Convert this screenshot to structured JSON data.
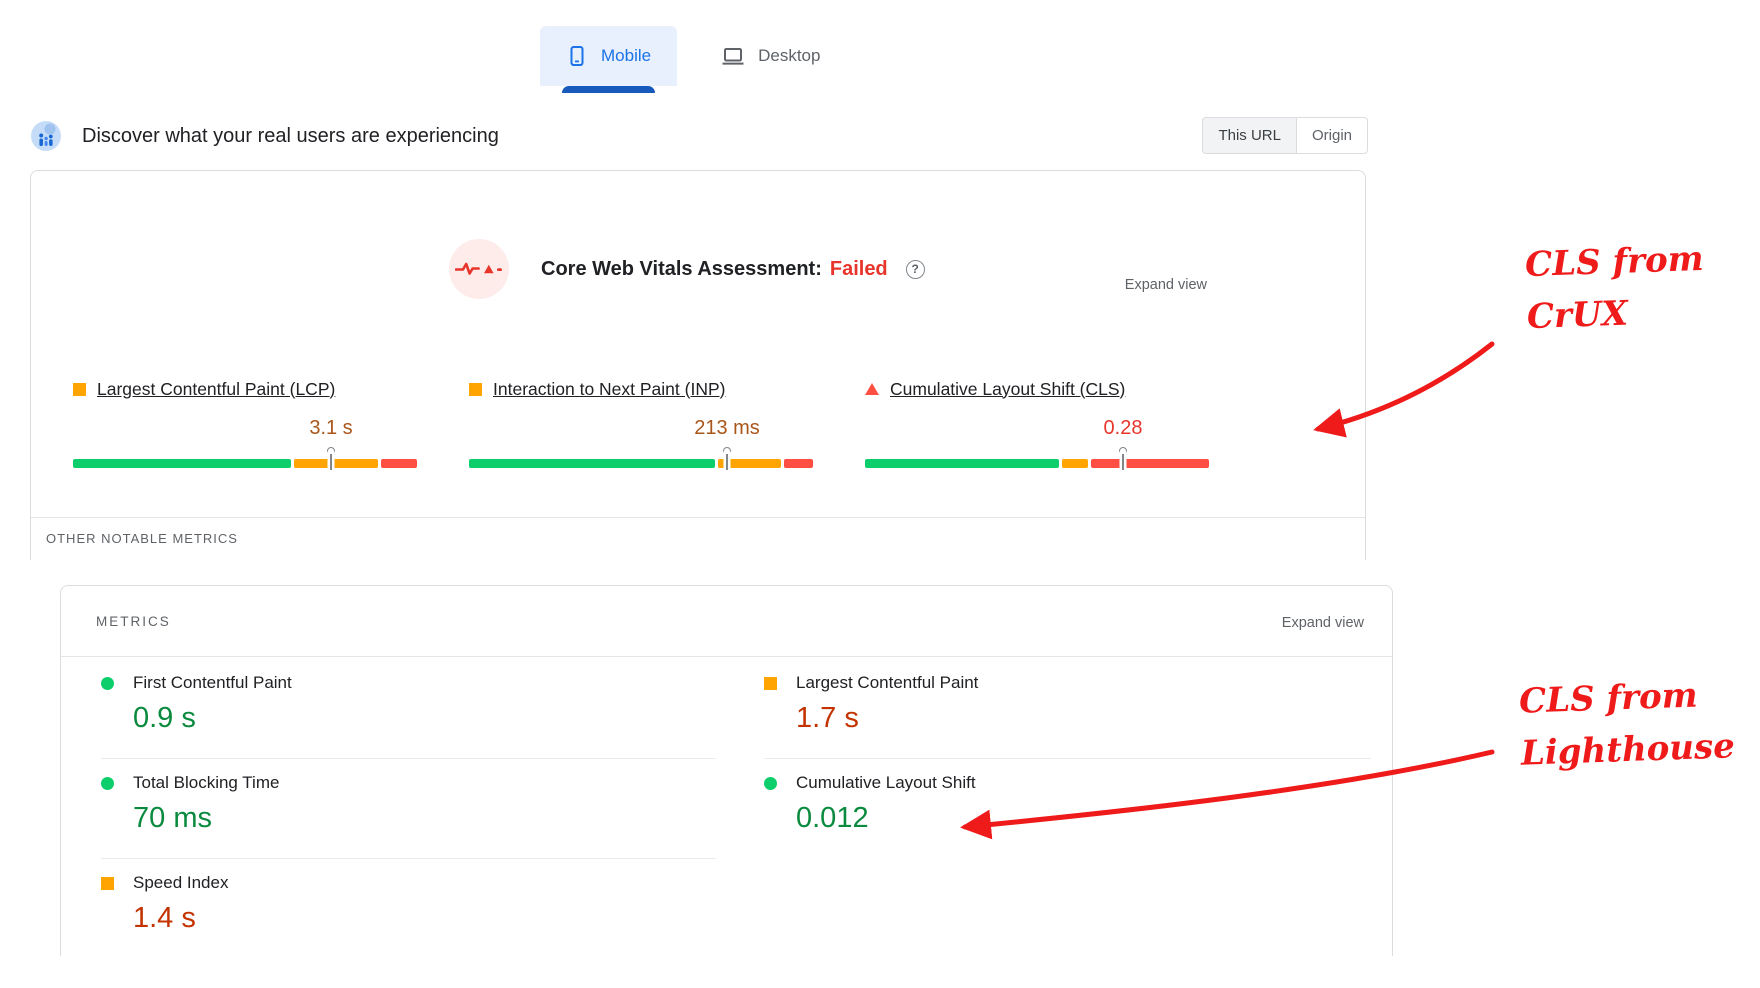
{
  "device_tabs": {
    "mobile": {
      "label": "Mobile",
      "selected": true
    },
    "desktop": {
      "label": "Desktop",
      "selected": false
    }
  },
  "field_section": {
    "title": "Discover what your real users are experiencing",
    "scope_toggle": {
      "this_url": "This URL",
      "origin": "Origin",
      "selected": "This URL"
    },
    "assessment_label": "Core Web Vitals Assessment:",
    "assessment_result": "Failed",
    "expand_view_label": "Expand view",
    "metrics": [
      {
        "name": "Largest Contentful Paint (LCP)",
        "value": "3.1 s",
        "status": "needs-improvement",
        "bullet": "square-orange",
        "value_color": "#a9561b",
        "distribution_pct": {
          "good": 64,
          "needs_improvement": 25,
          "poor": 11
        },
        "p75_marker_pct": 75
      },
      {
        "name": "Interaction to Next Paint (INP)",
        "value": "213 ms",
        "status": "needs-improvement",
        "bullet": "square-orange",
        "value_color": "#a9561b",
        "distribution_pct": {
          "good": 72,
          "needs_improvement": 19,
          "poor": 9
        },
        "p75_marker_pct": 75
      },
      {
        "name": "Cumulative Layout Shift (CLS)",
        "value": "0.28",
        "status": "poor",
        "bullet": "triangle-red",
        "value_color": "#e8352c",
        "distribution_pct": {
          "good": 57,
          "needs_improvement": 8,
          "poor": 35
        },
        "p75_marker_pct": 75
      }
    ],
    "other_metrics_label": "OTHER NOTABLE METRICS"
  },
  "lab_section": {
    "header": "METRICS",
    "expand_view_label": "Expand view",
    "metrics_left": [
      {
        "name": "First Contentful Paint",
        "value": "0.9 s",
        "bullet": "circle-green",
        "value_color": "#0a8a3e"
      },
      {
        "name": "Total Blocking Time",
        "value": "70 ms",
        "bullet": "circle-green",
        "value_color": "#0a8a3e"
      },
      {
        "name": "Speed Index",
        "value": "1.4 s",
        "bullet": "square-orange",
        "value_color": "#c33300"
      }
    ],
    "metrics_right": [
      {
        "name": "Largest Contentful Paint",
        "value": "1.7 s",
        "bullet": "square-orange",
        "value_color": "#c33300"
      },
      {
        "name": "Cumulative Layout Shift",
        "value": "0.012",
        "bullet": "circle-green",
        "value_color": "#0a8a3e"
      }
    ]
  },
  "annotations": [
    {
      "line1": "CLS from",
      "line2": "CrUX",
      "color": "#ef1a1a"
    },
    {
      "line1": "CLS from",
      "line2": "Lighthouse",
      "color": "#ef1a1a"
    }
  ],
  "colors": {
    "good": "#0cce6b",
    "needs_improvement": "#ffa400",
    "poor": "#ff4e42",
    "accent_blue": "#1a73e8",
    "failed_red": "#e8352c",
    "annotation_red": "#ef1a1a"
  }
}
